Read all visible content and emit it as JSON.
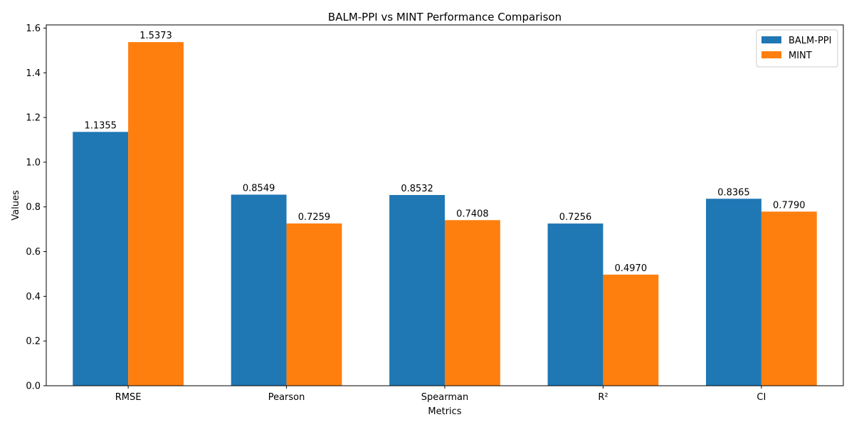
{
  "chart_data": {
    "type": "bar",
    "title": "BALM-PPI vs MINT Performance Comparison",
    "xlabel": "Metrics",
    "ylabel": "Values",
    "categories": [
      "RMSE",
      "Pearson",
      "Spearman",
      "R²",
      "CI"
    ],
    "series": [
      {
        "name": "BALM-PPI",
        "color": "#1f77b4",
        "values": [
          1.1355,
          0.8549,
          0.8532,
          0.7256,
          0.8365
        ],
        "labels": [
          "1.1355",
          "0.8549",
          "0.8532",
          "0.7256",
          "0.8365"
        ]
      },
      {
        "name": "MINT",
        "color": "#ff7f0e",
        "values": [
          1.5373,
          0.7259,
          0.7408,
          0.497,
          0.779
        ],
        "labels": [
          "1.5373",
          "0.7259",
          "0.7408",
          "0.4970",
          "0.7790"
        ]
      }
    ],
    "ylim": [
      0,
      1.6142
    ],
    "yticks": [
      "0.0",
      "0.2",
      "0.4",
      "0.6",
      "0.8",
      "1.0",
      "1.2",
      "1.4",
      "1.6"
    ],
    "grid": false,
    "legend": "top-right"
  }
}
